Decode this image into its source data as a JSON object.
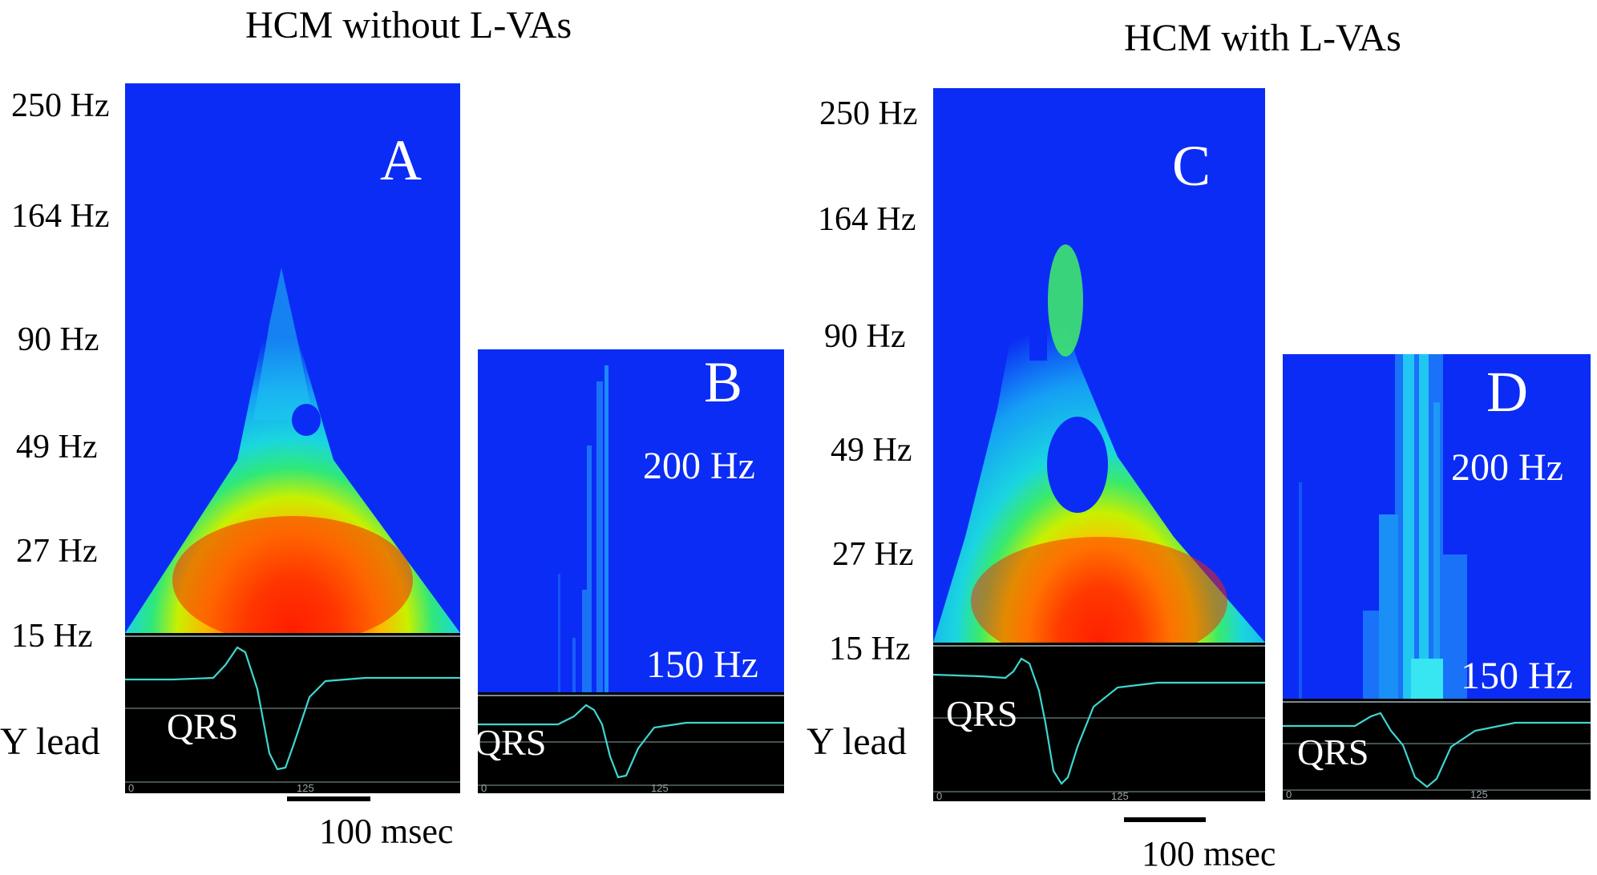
{
  "figure": {
    "left_title": "HCM without L-VAs",
    "right_title": "HCM with L-VAs",
    "y_lead_label": "Y lead",
    "freq_axis_left": [
      "250 Hz",
      "164 Hz",
      "90 Hz",
      "49 Hz",
      "27 Hz",
      "15 Hz"
    ],
    "freq_axis_right": [
      "250 Hz",
      "164 Hz",
      "90 Hz",
      "49 Hz",
      "27 Hz",
      "15 Hz"
    ],
    "panels": {
      "A": {
        "letter": "A",
        "qrs": "QRS",
        "tick0": "0",
        "tick125": "125"
      },
      "B": {
        "letter": "B",
        "freq_top": "200 Hz",
        "freq_bottom": "150 Hz",
        "qrs": "QRS",
        "tick0": "0",
        "tick125": "125"
      },
      "C": {
        "letter": "C",
        "qrs": "QRS",
        "tick0": "0",
        "tick125": "125"
      },
      "D": {
        "letter": "D",
        "freq_top": "200 Hz",
        "freq_bottom": "150 Hz",
        "qrs": "QRS",
        "tick0": "0",
        "tick125": "125"
      }
    },
    "scale_left": "100 msec",
    "scale_right": "100 msec"
  },
  "colors": {
    "background_blue": "#0b2cf5",
    "ecg_trace": "#3fd6d0",
    "ecg_background": "#000000",
    "peak_red": "#ff1a00"
  }
}
